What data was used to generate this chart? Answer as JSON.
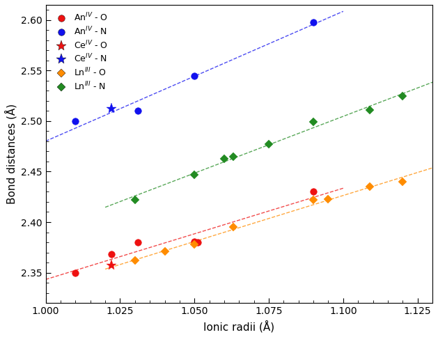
{
  "title": "",
  "xlabel": "Ionic radii (Å)",
  "ylabel": "Bond distances (Å)",
  "xlim": [
    1.0,
    1.13
  ],
  "ylim": [
    2.32,
    2.615
  ],
  "xticks": [
    1.0,
    1.025,
    1.05,
    1.075,
    1.1,
    1.125
  ],
  "yticks": [
    2.35,
    2.4,
    2.45,
    2.5,
    2.55,
    2.6
  ],
  "AnIV_O": {
    "x": [
      1.01,
      1.022,
      1.031,
      1.05,
      1.051,
      1.09
    ],
    "y": [
      2.35,
      2.368,
      2.38,
      2.381,
      2.38,
      2.43
    ],
    "color": "#ee1111",
    "marker": "o",
    "label": "An$^{IV}$ · O"
  },
  "AnIV_N": {
    "x": [
      1.01,
      1.031,
      1.05,
      1.09
    ],
    "y": [
      2.5,
      2.51,
      2.545,
      2.598
    ],
    "color": "#1111ee",
    "marker": "o",
    "label": "An$^{IV}$ · N"
  },
  "CeIV_O": {
    "x": [
      1.022
    ],
    "y": [
      2.357
    ],
    "color": "#ee1111",
    "marker": "*",
    "label": "Ce$^{IV}$ · O"
  },
  "CeIV_N": {
    "x": [
      1.022
    ],
    "y": [
      2.512
    ],
    "color": "#1111ee",
    "marker": "*",
    "label": "Ce$^{IV}$ · N"
  },
  "LnIII_O": {
    "x": [
      1.03,
      1.04,
      1.05,
      1.063,
      1.09,
      1.095,
      1.109,
      1.12
    ],
    "y": [
      2.362,
      2.371,
      2.378,
      2.395,
      2.422,
      2.423,
      2.435,
      2.44
    ],
    "color": "#ff8c00",
    "marker": "D",
    "label": "Ln$^{III}$ · O"
  },
  "LnIII_N": {
    "x": [
      1.03,
      1.05,
      1.06,
      1.063,
      1.075,
      1.09,
      1.109,
      1.12
    ],
    "y": [
      2.422,
      2.447,
      2.463,
      2.465,
      2.477,
      2.499,
      2.511,
      2.525
    ],
    "color": "#228b22",
    "marker": "D",
    "label": "Ln$^{III}$ · N"
  }
}
